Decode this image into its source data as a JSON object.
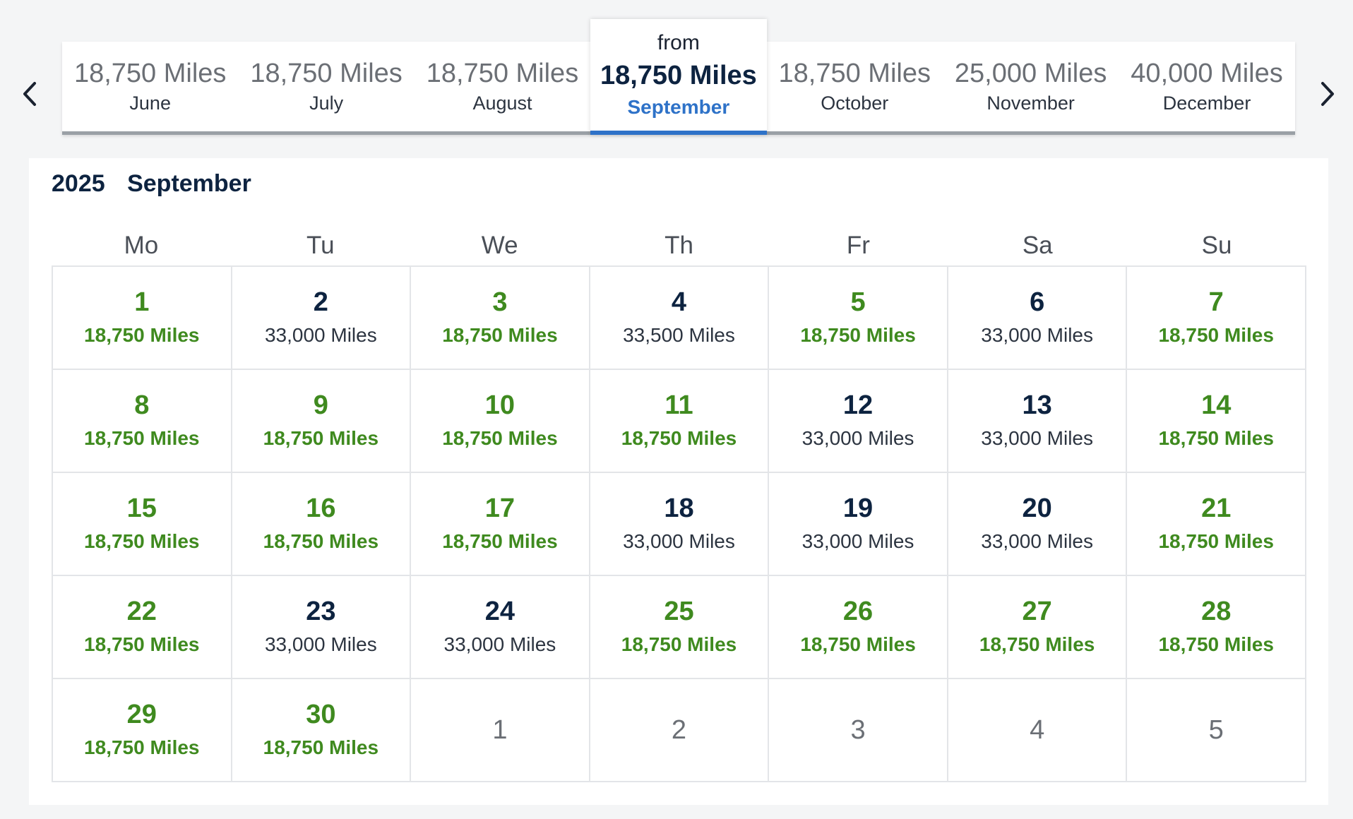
{
  "nav": {
    "prev_icon": "chevron-left-icon",
    "next_icon": "chevron-right-icon"
  },
  "months": [
    {
      "miles": "18,750 Miles",
      "name": "June"
    },
    {
      "miles": "18,750 Miles",
      "name": "July"
    },
    {
      "miles": "18,750 Miles",
      "name": "August"
    },
    {
      "from": "from",
      "miles": "18,750 Miles",
      "name": "September",
      "active": true
    },
    {
      "miles": "18,750 Miles",
      "name": "October"
    },
    {
      "miles": "25,000 Miles",
      "name": "November"
    },
    {
      "miles": "40,000 Miles",
      "name": "December"
    }
  ],
  "calendar": {
    "year": "2025",
    "month": "September",
    "weekdays": [
      "Mo",
      "Tu",
      "We",
      "Th",
      "Fr",
      "Sa",
      "Su"
    ],
    "days": [
      {
        "day": "1",
        "miles": "18,750 Miles",
        "type": "saver"
      },
      {
        "day": "2",
        "miles": "33,000 Miles",
        "type": "regular"
      },
      {
        "day": "3",
        "miles": "18,750 Miles",
        "type": "saver"
      },
      {
        "day": "4",
        "miles": "33,500 Miles",
        "type": "regular"
      },
      {
        "day": "5",
        "miles": "18,750 Miles",
        "type": "saver"
      },
      {
        "day": "6",
        "miles": "33,000 Miles",
        "type": "regular"
      },
      {
        "day": "7",
        "miles": "18,750 Miles",
        "type": "saver"
      },
      {
        "day": "8",
        "miles": "18,750 Miles",
        "type": "saver"
      },
      {
        "day": "9",
        "miles": "18,750 Miles",
        "type": "saver"
      },
      {
        "day": "10",
        "miles": "18,750 Miles",
        "type": "saver"
      },
      {
        "day": "11",
        "miles": "18,750 Miles",
        "type": "saver"
      },
      {
        "day": "12",
        "miles": "33,000 Miles",
        "type": "regular"
      },
      {
        "day": "13",
        "miles": "33,000 Miles",
        "type": "regular"
      },
      {
        "day": "14",
        "miles": "18,750 Miles",
        "type": "saver"
      },
      {
        "day": "15",
        "miles": "18,750 Miles",
        "type": "saver"
      },
      {
        "day": "16",
        "miles": "18,750 Miles",
        "type": "saver"
      },
      {
        "day": "17",
        "miles": "18,750 Miles",
        "type": "saver"
      },
      {
        "day": "18",
        "miles": "33,000 Miles",
        "type": "regular"
      },
      {
        "day": "19",
        "miles": "33,000 Miles",
        "type": "regular"
      },
      {
        "day": "20",
        "miles": "33,000 Miles",
        "type": "regular"
      },
      {
        "day": "21",
        "miles": "18,750 Miles",
        "type": "saver"
      },
      {
        "day": "22",
        "miles": "18,750 Miles",
        "type": "saver"
      },
      {
        "day": "23",
        "miles": "33,000 Miles",
        "type": "regular"
      },
      {
        "day": "24",
        "miles": "33,000 Miles",
        "type": "regular"
      },
      {
        "day": "25",
        "miles": "18,750 Miles",
        "type": "saver"
      },
      {
        "day": "26",
        "miles": "18,750 Miles",
        "type": "saver"
      },
      {
        "day": "27",
        "miles": "18,750 Miles",
        "type": "saver"
      },
      {
        "day": "28",
        "miles": "18,750 Miles",
        "type": "saver"
      },
      {
        "day": "29",
        "miles": "18,750 Miles",
        "type": "saver"
      },
      {
        "day": "30",
        "miles": "18,750 Miles",
        "type": "saver"
      },
      {
        "day": "1",
        "type": "outside"
      },
      {
        "day": "2",
        "type": "outside"
      },
      {
        "day": "3",
        "type": "outside"
      },
      {
        "day": "4",
        "type": "outside"
      },
      {
        "day": "5",
        "type": "outside"
      }
    ]
  },
  "colors": {
    "saver": "#3f8a1f",
    "regular": "#0d2340",
    "accent": "#2e72c8"
  }
}
